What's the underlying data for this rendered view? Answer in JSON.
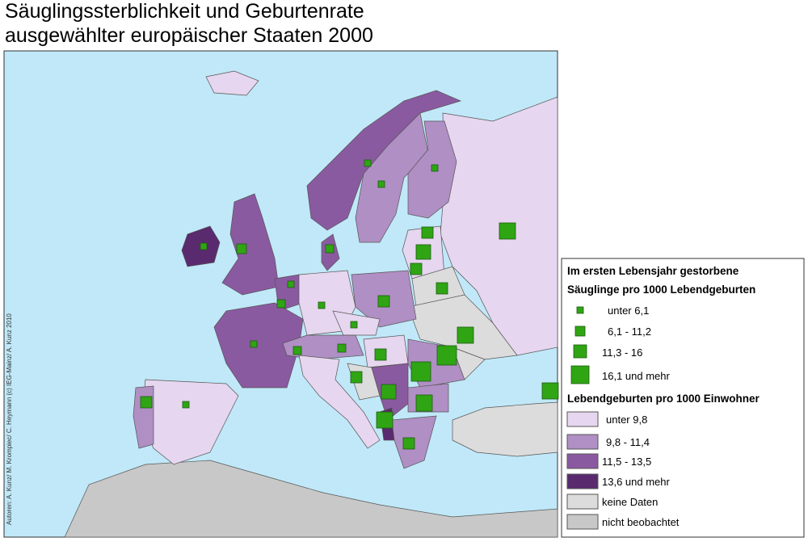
{
  "title": [
    "Säuglingssterblichkeit und Geburtenrate",
    "ausgewählter europäischer Staaten 2000"
  ],
  "credit": "Autoren: A. Kunz/ M. Krompiec/ C. Heymann (c) IEG-Mainz/ A. Kunz 2010",
  "legend": {
    "mortality_title": [
      "Im ersten Lebensjahr gestorbene",
      "Säuglinge pro 1000  Lebendgeburten"
    ],
    "mortality_classes": [
      "unter  6,1",
      "6,1 - 11,2",
      "11,3 - 16",
      "16,1 und mehr"
    ],
    "birth_title": "Lebendgeburten pro 1000 Einwohner",
    "birth_classes": [
      "unter  9,8",
      "9,8 - 11,4",
      "11,5 - 13,5",
      "13,6 und mehr",
      "keine Daten",
      "nicht beobachtet"
    ]
  }
}
